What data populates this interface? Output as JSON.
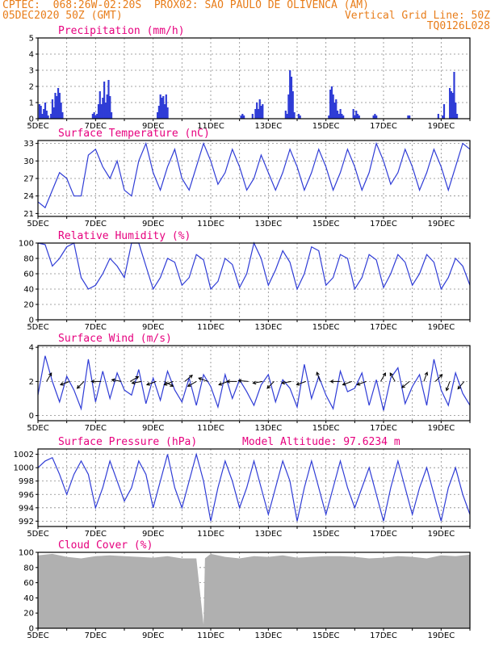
{
  "header": {
    "line1_left": "CPTEC:  068:26W-02:20S  PROX02: SAO PAULO DE OLIVENCA (AM)",
    "line2_left": "05DEC2020 50Z (GMT)",
    "line2_right": "Vertical Grid Line: 50Z",
    "line3_right": "TQ0126L028"
  },
  "colors": {
    "header": "#e87d1a",
    "title": "#e6007e",
    "line": "#2f3cd6",
    "bar": "#2f3cd6",
    "cloud": "#b0b0b0"
  },
  "x_axis": {
    "labels": [
      "5DEC",
      "7DEC",
      "9DEC",
      "11DEC",
      "13DEC",
      "15DEC",
      "17DEC",
      "19DEC"
    ],
    "label_days": [
      0,
      2,
      4,
      6,
      8,
      10,
      12,
      14
    ],
    "start_day": 0,
    "end_day": 15
  },
  "panels": {
    "precip": {
      "title": "Precipitation (mm/h)",
      "chart_data": {
        "type": "bar",
        "x_unit": "days from 5DEC 00Z",
        "ylim": [
          0,
          5
        ],
        "yticks": [
          0,
          1,
          2,
          3,
          4,
          5
        ],
        "x": [
          0.05,
          0.1,
          0.15,
          0.2,
          0.25,
          0.3,
          0.35,
          0.45,
          0.5,
          0.55,
          0.6,
          0.65,
          0.7,
          0.75,
          0.8,
          0.85,
          1.9,
          1.95,
          2.0,
          2.05,
          2.1,
          2.15,
          2.2,
          2.25,
          2.3,
          2.35,
          2.4,
          2.45,
          2.5,
          2.55,
          4.15,
          4.2,
          4.25,
          4.3,
          4.35,
          4.4,
          4.45,
          4.5,
          7.05,
          7.1,
          7.15,
          7.45,
          7.55,
          7.6,
          7.65,
          7.7,
          7.75,
          7.8,
          8.6,
          8.65,
          8.7,
          8.75,
          8.8,
          8.85,
          8.9,
          9.05,
          9.1,
          10.1,
          10.15,
          10.2,
          10.25,
          10.3,
          10.35,
          10.4,
          10.45,
          10.5,
          10.55,
          10.6,
          10.95,
          11.0,
          11.05,
          11.1,
          11.15,
          11.65,
          11.7,
          11.75,
          12.85,
          12.9,
          13.9,
          14.05,
          14.1,
          14.3,
          14.35,
          14.4,
          14.45,
          14.5,
          14.55
        ],
        "values": [
          0.9,
          0.8,
          0.3,
          0.6,
          1.0,
          0.5,
          0.2,
          0.3,
          1.2,
          0.7,
          1.6,
          1.4,
          1.9,
          1.6,
          1.0,
          0.4,
          0.3,
          0.4,
          0.2,
          0.3,
          0.9,
          1.7,
          0.9,
          1.3,
          2.3,
          1.0,
          1.5,
          2.4,
          1.4,
          0.4,
          0.4,
          0.8,
          1.5,
          1.3,
          1.4,
          0.9,
          1.5,
          0.7,
          0.2,
          0.3,
          0.2,
          0.3,
          0.6,
          1.0,
          0.6,
          1.2,
          0.8,
          0.9,
          0.5,
          0.3,
          1.5,
          3.0,
          2.6,
          1.7,
          0.4,
          0.3,
          0.2,
          0.2,
          1.8,
          2.0,
          1.5,
          1.0,
          1.2,
          0.5,
          0.3,
          0.6,
          0.3,
          0.2,
          0.6,
          0.2,
          0.5,
          0.3,
          0.2,
          0.2,
          0.3,
          0.2,
          0.2,
          0.2,
          0.3,
          0.2,
          0.9,
          1.9,
          1.7,
          1.6,
          2.9,
          1.0,
          0.3
        ]
      }
    },
    "temp": {
      "title": "Surface Temperature (nC)",
      "chart_data": {
        "type": "line",
        "ylim": [
          20.5,
          33.5
        ],
        "yticks": [
          21,
          24,
          27,
          30,
          33
        ],
        "x": [
          0,
          0.25,
          0.5,
          0.75,
          1,
          1.25,
          1.5,
          1.75,
          2,
          2.25,
          2.5,
          2.75,
          3,
          3.25,
          3.5,
          3.75,
          4,
          4.25,
          4.5,
          4.75,
          5,
          5.25,
          5.5,
          5.75,
          6,
          6.25,
          6.5,
          6.75,
          7,
          7.25,
          7.5,
          7.75,
          8,
          8.25,
          8.5,
          8.75,
          9,
          9.25,
          9.5,
          9.75,
          10,
          10.25,
          10.5,
          10.75,
          11,
          11.25,
          11.5,
          11.75,
          12,
          12.25,
          12.5,
          12.75,
          13,
          13.25,
          13.5,
          13.75,
          14,
          14.25,
          14.5,
          14.75,
          15
        ],
        "values": [
          23,
          22,
          25,
          28,
          27,
          24,
          24,
          31,
          32,
          29,
          27,
          30,
          25,
          24,
          30,
          33,
          28,
          25,
          29,
          32,
          27,
          25,
          29,
          33,
          30,
          26,
          28,
          32,
          29,
          25,
          27,
          31,
          28,
          25,
          28,
          32,
          29,
          25,
          28,
          32,
          29,
          25,
          28,
          32,
          29,
          25,
          28,
          33,
          30,
          26,
          28,
          32,
          29,
          25,
          28,
          32,
          29,
          25,
          29,
          33,
          32
        ]
      }
    },
    "rh": {
      "title": "Relative Humidity (%)",
      "chart_data": {
        "type": "line",
        "ylim": [
          0,
          100
        ],
        "yticks": [
          0,
          20,
          40,
          60,
          80,
          100
        ],
        "x": [
          0,
          0.25,
          0.5,
          0.75,
          1,
          1.25,
          1.5,
          1.75,
          2,
          2.25,
          2.5,
          2.75,
          3,
          3.25,
          3.5,
          3.75,
          4,
          4.25,
          4.5,
          4.75,
          5,
          5.25,
          5.5,
          5.75,
          6,
          6.25,
          6.5,
          6.75,
          7,
          7.25,
          7.5,
          7.75,
          8,
          8.25,
          8.5,
          8.75,
          9,
          9.25,
          9.5,
          9.75,
          10,
          10.25,
          10.5,
          10.75,
          11,
          11.25,
          11.5,
          11.75,
          12,
          12.25,
          12.5,
          12.75,
          13,
          13.25,
          13.5,
          13.75,
          14,
          14.25,
          14.5,
          14.75,
          15
        ],
        "values": [
          100,
          98,
          70,
          80,
          95,
          100,
          55,
          40,
          45,
          60,
          80,
          70,
          55,
          100,
          100,
          70,
          40,
          55,
          80,
          75,
          45,
          55,
          85,
          78,
          40,
          50,
          80,
          72,
          42,
          60,
          100,
          80,
          45,
          65,
          90,
          75,
          40,
          60,
          95,
          90,
          45,
          55,
          85,
          80,
          40,
          55,
          85,
          78,
          42,
          60,
          85,
          75,
          45,
          60,
          85,
          75,
          40,
          55,
          80,
          70,
          45
        ]
      }
    },
    "wind": {
      "title": "Surface Wind (m/s)",
      "chart_data": {
        "type": "line",
        "ylim": [
          -0.3,
          4.1
        ],
        "yticks": [
          0,
          2,
          4
        ],
        "x": [
          0,
          0.25,
          0.5,
          0.75,
          1,
          1.25,
          1.5,
          1.75,
          2,
          2.25,
          2.5,
          2.75,
          3,
          3.25,
          3.5,
          3.75,
          4,
          4.25,
          4.5,
          4.75,
          5,
          5.25,
          5.5,
          5.75,
          6,
          6.25,
          6.5,
          6.75,
          7,
          7.25,
          7.5,
          7.75,
          8,
          8.25,
          8.5,
          8.75,
          9,
          9.25,
          9.5,
          9.75,
          10,
          10.25,
          10.5,
          10.75,
          11,
          11.25,
          11.5,
          11.75,
          12,
          12.25,
          12.5,
          12.75,
          13,
          13.25,
          13.5,
          13.75,
          14,
          14.25,
          14.5,
          14.75,
          15
        ],
        "values": [
          1.2,
          3.5,
          2.0,
          0.8,
          2.3,
          1.5,
          0.4,
          3.3,
          0.8,
          2.6,
          1.0,
          2.5,
          1.5,
          1.2,
          2.7,
          0.7,
          2.2,
          0.9,
          2.6,
          1.5,
          0.8,
          2.2,
          0.6,
          2.4,
          1.7,
          0.5,
          2.4,
          1.0,
          2.1,
          1.4,
          0.6,
          1.8,
          2.4,
          0.8,
          2.1,
          1.6,
          0.5,
          3.0,
          1.0,
          2.3,
          1.2,
          0.4,
          2.6,
          1.4,
          1.6,
          2.5,
          0.6,
          2.1,
          0.3,
          2.2,
          2.8,
          0.7,
          1.7,
          2.4,
          0.6,
          3.3,
          1.5,
          0.6,
          2.5,
          1.3,
          0.6
        ],
        "arrow_days": [
          0.3,
          1.1,
          1.6,
          2.2,
          2.9,
          3.2,
          3.6,
          4.1,
          4.4,
          4.7,
          5.1,
          5.5,
          5.9,
          6.6,
          6.9,
          7.3,
          7.8,
          8.2,
          8.8,
          9.3,
          9.8,
          10.5,
          10.9,
          11.4,
          11.9,
          12.4,
          12.9,
          13.4,
          13.8,
          14.3,
          14.8
        ],
        "arrow_dir_deg": [
          60,
          200,
          225,
          180,
          170,
          30,
          190,
          200,
          330,
          200,
          40,
          210,
          160,
          200,
          180,
          175,
          190,
          225,
          190,
          200,
          110,
          180,
          200,
          200,
          60,
          120,
          220,
          70,
          45,
          250,
          230
        ]
      }
    },
    "pres": {
      "title": "Surface Pressure (hPa)",
      "model_altitude_label": "Model Altitude: 97.6234 m",
      "chart_data": {
        "type": "line",
        "ylim": [
          991.2,
          1002.8
        ],
        "yticks": [
          992,
          994,
          996,
          998,
          1000,
          1002
        ],
        "x": [
          0,
          0.25,
          0.5,
          0.75,
          1,
          1.25,
          1.5,
          1.75,
          2,
          2.25,
          2.5,
          2.75,
          3,
          3.25,
          3.5,
          3.75,
          4,
          4.25,
          4.5,
          4.75,
          5,
          5.25,
          5.5,
          5.75,
          6,
          6.25,
          6.5,
          6.75,
          7,
          7.25,
          7.5,
          7.75,
          8,
          8.25,
          8.5,
          8.75,
          9,
          9.25,
          9.5,
          9.75,
          10,
          10.25,
          10.5,
          10.75,
          11,
          11.25,
          11.5,
          11.75,
          12,
          12.25,
          12.5,
          12.75,
          13,
          13.25,
          13.5,
          13.75,
          14,
          14.25,
          14.5,
          14.75,
          15
        ],
        "values": [
          1000,
          1001,
          1001.5,
          999,
          996,
          999,
          1001,
          999,
          994,
          997,
          1001,
          998,
          995,
          997,
          1001,
          999,
          994,
          998,
          1002,
          997,
          994,
          998,
          1002,
          998,
          992,
          997,
          1001,
          998,
          994,
          997,
          1001,
          997,
          993,
          997,
          1001,
          998,
          992,
          997,
          1001,
          997,
          993,
          997,
          1001,
          997,
          994,
          997,
          1000,
          996,
          992,
          997,
          1001,
          997,
          993,
          997,
          1000,
          996,
          992,
          997,
          1000,
          996,
          993
        ]
      }
    },
    "cloud": {
      "title": "Cloud Cover (%)",
      "chart_data": {
        "type": "area",
        "ylim": [
          0,
          100
        ],
        "yticks": [
          0,
          20,
          40,
          60,
          80,
          100
        ],
        "x": [
          0,
          0.5,
          1,
          1.5,
          2,
          2.5,
          3,
          3.5,
          4,
          4.5,
          5,
          5.5,
          5.75,
          5.8,
          6,
          6.5,
          7,
          7.5,
          8,
          8.5,
          9,
          9.5,
          10,
          10.5,
          11,
          11.5,
          12,
          12.5,
          13,
          13.5,
          14,
          14.5,
          15
        ],
        "values": [
          96,
          98,
          94,
          92,
          95,
          96,
          95,
          94,
          93,
          95,
          92,
          92,
          5,
          92,
          98,
          94,
          92,
          95,
          94,
          96,
          93,
          94,
          95,
          95,
          94,
          92,
          93,
          95,
          94,
          92,
          96,
          95,
          97
        ]
      }
    }
  }
}
